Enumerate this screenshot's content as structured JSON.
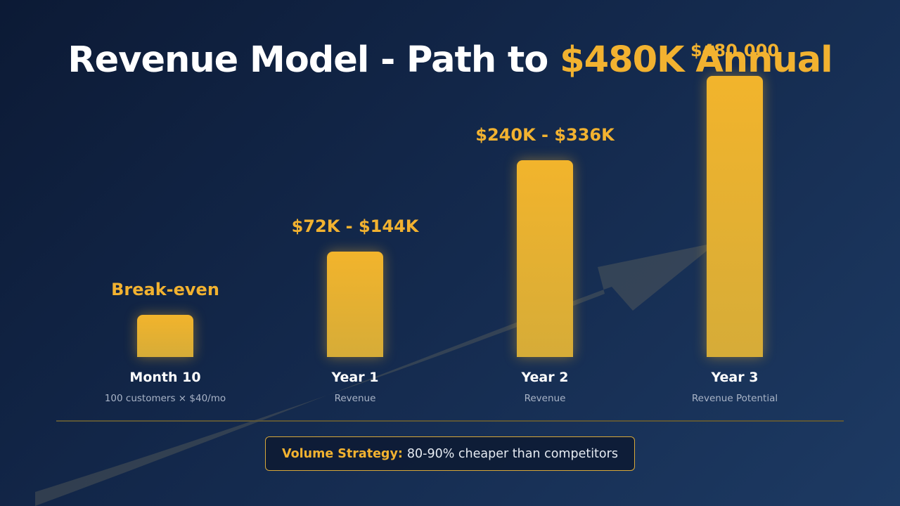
{
  "slide": {
    "title_main": "Revenue Model - Path to ",
    "title_accent": "$480K Annual"
  },
  "chart_data": {
    "type": "bar",
    "title": "Revenue Model - Path to $480K Annual",
    "categories": [
      "Month 10",
      "Year 1",
      "Year 2",
      "Year 3"
    ],
    "subtitles": [
      "100 customers × $40/mo",
      "Revenue",
      "Revenue",
      "Revenue Potential"
    ],
    "value_labels": [
      "Break-even",
      "$72K - $144K",
      "$240K - $336K",
      "$480,000"
    ],
    "values": [
      60,
      150,
      280,
      400
    ],
    "ylim": [
      0,
      400
    ],
    "grid": false,
    "legend": "none",
    "bar_color": "#f2b230"
  },
  "footer": {
    "strategy_key": "Volume Strategy:",
    "strategy_text": "80-90% cheaper than competitors"
  },
  "colors": {
    "accent": "#f2b230",
    "background": "#13284b"
  }
}
